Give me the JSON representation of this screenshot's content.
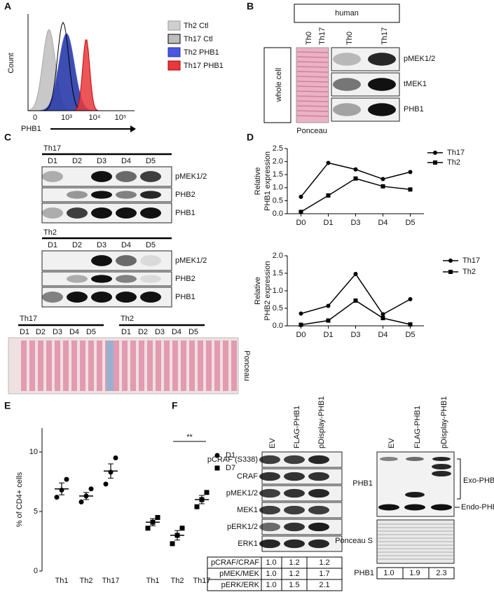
{
  "A": {
    "label": "A",
    "y_label": "Count",
    "x_label": "PHB1",
    "x_ticks": [
      "0",
      "10³",
      "10⁴",
      "10⁵"
    ],
    "legend": [
      "Th2 Ctl",
      "Th17 Ctl",
      "Th2 PHB1",
      "Th17 PHB1"
    ]
  },
  "B": {
    "label": "B",
    "header": "human",
    "section": "whole cell",
    "ponceau_lanes": [
      "Th0",
      "Th17"
    ],
    "blot_lanes": [
      "Th0",
      "Th17"
    ],
    "bands": [
      "pMEK1/2",
      "tMEK1",
      "PHB1"
    ],
    "caption": "Ponceau"
  },
  "C": {
    "label": "C",
    "groups": [
      {
        "name": "Th17",
        "lanes": [
          "D1",
          "D2",
          "D3",
          "D4",
          "D5"
        ],
        "bands": [
          "pMEK1/2",
          "PHB2",
          "PHB1"
        ]
      },
      {
        "name": "Th2",
        "lanes": [
          "D1",
          "D2",
          "D3",
          "D4",
          "D5"
        ],
        "bands": [
          "pMEK1/2",
          "PHB2",
          "PHB1"
        ]
      }
    ],
    "ponceau": {
      "groups": [
        {
          "name": "Th17",
          "lanes": [
            "D1",
            "D2",
            "D3",
            "D4",
            "D5"
          ]
        },
        {
          "name": "Th2",
          "lanes": [
            "D1",
            "D2",
            "D3",
            "D4",
            "D5"
          ]
        }
      ],
      "caption": "Ponceau"
    }
  },
  "D": {
    "label": "D"
  },
  "E": {
    "label": "E"
  },
  "F": {
    "label": "F",
    "lanes": [
      "EV",
      "FLAG-PHB1",
      "pDisplay-PHB1"
    ],
    "bands": [
      "pCRAF (S338)",
      "CRAF",
      "pMEK1/2",
      "MEK1",
      "pERK1/2",
      "ERK1"
    ],
    "ratios": [
      {
        "name": "pCRAF/CRAF",
        "values": [
          "1.0",
          "1.2",
          "1.2"
        ]
      },
      {
        "name": "pMEK/MEK",
        "values": [
          "1.0",
          "1.2",
          "1.7"
        ]
      },
      {
        "name": "pERK/ERK",
        "values": [
          "1.0",
          "1.5",
          "2.1"
        ]
      }
    ],
    "right": {
      "lanes": [
        "EV",
        "FLAG-PHB1",
        "pDisplay-PHB1"
      ],
      "band": "PHB1",
      "exo": "Exo-PHB1",
      "endo": "Endo-PHB1",
      "stain": "Ponceau S",
      "ratio": {
        "name": "PHB1",
        "values": [
          "1.0",
          "1.9",
          "2.3"
        ]
      }
    }
  },
  "chart_data": [
    {
      "type": "line",
      "y_label": [
        "Relative",
        "PHB1 expression"
      ],
      "categories": [
        "D0",
        "D1",
        "D3",
        "D4",
        "D5"
      ],
      "ylim": [
        0,
        2.5
      ],
      "yticks": [
        {
          "value": 0,
          "label": "0.0"
        },
        0.5,
        {
          "value": 1,
          "label": "1.0"
        },
        1.5,
        {
          "value": 2,
          "label": "2.0"
        },
        2.5
      ],
      "series": [
        {
          "name": "Th17",
          "color": "#000000",
          "marker": "circle",
          "values": [
            0.65,
            1.95,
            1.7,
            1.33,
            1.6
          ]
        },
        {
          "name": "Th2",
          "color": "#000000",
          "marker": "square",
          "values": [
            0.07,
            0.7,
            1.35,
            1.05,
            0.93
          ]
        }
      ]
    },
    {
      "type": "line",
      "y_label": [
        "Relative",
        "PHB2 expression"
      ],
      "categories": [
        "D0",
        "D1",
        "D3",
        "D4",
        "D5"
      ],
      "ylim": [
        0,
        2
      ],
      "yticks": [
        {
          "value": 0,
          "label": "0.0"
        },
        0.5,
        {
          "value": 1,
          "label": "1.0"
        },
        1.5,
        {
          "value": 2,
          "label": "2.0"
        }
      ],
      "series": [
        {
          "name": "Th17",
          "color": "#000000",
          "marker": "circle",
          "values": [
            0.35,
            0.57,
            1.48,
            0.33,
            0.76
          ]
        },
        {
          "name": "Th2",
          "color": "#000000",
          "marker": "square",
          "values": [
            0.03,
            0.15,
            0.72,
            0.22,
            0.04
          ]
        }
      ]
    },
    {
      "type": "dotplot",
      "y_label": "% of CD4+ cells",
      "categories": [
        "Th1",
        "Th2",
        "Th17",
        "Th1",
        "Th2",
        "Th17"
      ],
      "ylim": [
        0,
        12
      ],
      "yticks": [
        0,
        5,
        10
      ],
      "annotation": "**",
      "series": [
        {
          "name": "D1",
          "color": "#000000",
          "marker": "circle",
          "values": [
            [
              6.2,
              6.8,
              7.7
            ],
            [
              5.8,
              6.3,
              6.9
            ],
            [
              7.3,
              8.3,
              9.5
            ],
            null,
            null,
            null
          ],
          "mean": [
            6.9,
            6.3,
            8.4,
            null,
            null,
            null
          ],
          "sem": [
            0.5,
            0.3,
            0.6,
            null,
            null,
            null
          ]
        },
        {
          "name": "D7",
          "color": "#000000",
          "marker": "square",
          "values": [
            null,
            null,
            null,
            [
              3.6,
              4.1,
              4.5
            ],
            [
              2.3,
              3.0,
              3.6
            ],
            [
              5.4,
              6.0,
              6.6
            ]
          ],
          "mean": [
            null,
            null,
            null,
            4.1,
            3.0,
            6.0
          ],
          "sem": [
            null,
            null,
            null,
            0.3,
            0.4,
            0.35
          ]
        }
      ]
    }
  ]
}
